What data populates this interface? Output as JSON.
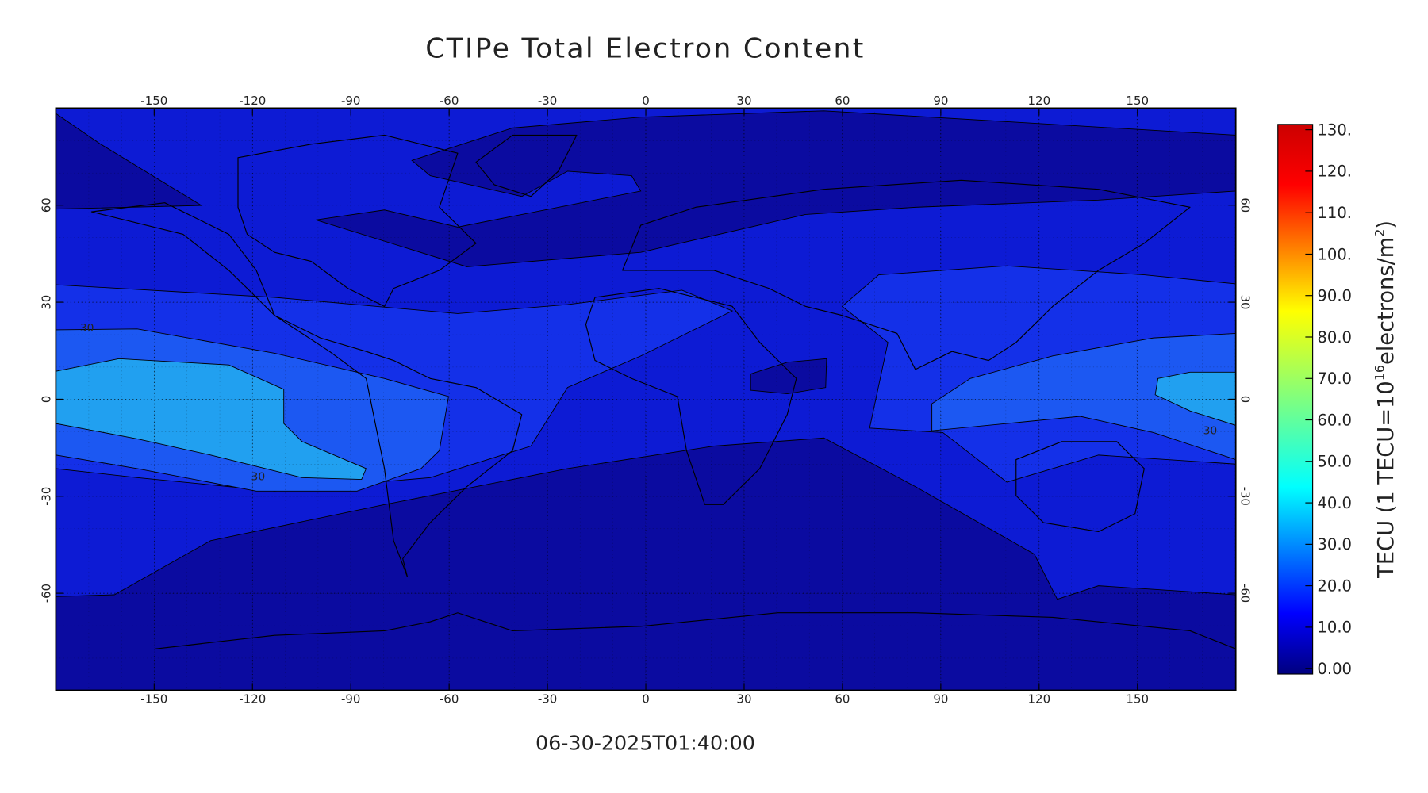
{
  "title": "CTIPe Total Electron Content",
  "timestamp": "06-30-2025T01:40:00",
  "map": {
    "xlim": [
      -180,
      180
    ],
    "ylim": [
      -90,
      90
    ],
    "xticks": [
      -150,
      -120,
      -90,
      -60,
      -30,
      0,
      30,
      60,
      90,
      120,
      150
    ],
    "yticks": [
      -60,
      -30,
      0,
      30,
      60
    ],
    "contour_labels": [
      30,
      30,
      30
    ]
  },
  "colorbar": {
    "lim": [
      0,
      130
    ],
    "ticks": [
      {
        "value": 0,
        "label": "0.00"
      },
      {
        "value": 10,
        "label": "10.0"
      },
      {
        "value": 20,
        "label": "20.0"
      },
      {
        "value": 30,
        "label": "30.0"
      },
      {
        "value": 40,
        "label": "40.0"
      },
      {
        "value": 50,
        "label": "50.0"
      },
      {
        "value": 60,
        "label": "60.0"
      },
      {
        "value": 70,
        "label": "70.0"
      },
      {
        "value": 80,
        "label": "80.0"
      },
      {
        "value": 90,
        "label": "90.0"
      },
      {
        "value": 100,
        "label": "100."
      },
      {
        "value": 110,
        "label": "110."
      },
      {
        "value": 120,
        "label": "120."
      },
      {
        "value": 130,
        "label": "130."
      }
    ],
    "label": {
      "prefix": "TECU (1 TECU=10",
      "exp": "16",
      "middle": "electrons/m",
      "exp2": "2",
      "suffix": ")"
    }
  }
}
